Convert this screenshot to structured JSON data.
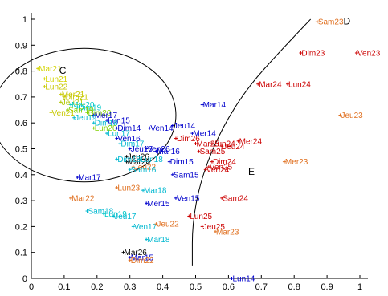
{
  "chart_data": {
    "type": "scatter",
    "xlim": [
      0,
      1
    ],
    "ylim": [
      0,
      1
    ],
    "x_ticks": [
      "0",
      "0.1",
      "0.2",
      "0.3",
      "0.4",
      "0.5",
      "0.6",
      "0.7",
      "0.8",
      "0.9",
      "1"
    ],
    "y_ticks": [
      "0",
      "0.1",
      "0.2",
      "0.3",
      "0.4",
      "0.5",
      "0.6",
      "0.7",
      "0.8",
      "0.9",
      "1"
    ],
    "grid": false,
    "regions": [
      {
        "label": "C",
        "x": 0.085,
        "y": 0.79
      },
      {
        "label": "D",
        "x": 0.95,
        "y": 0.98
      },
      {
        "label": "E",
        "x": 0.66,
        "y": 0.4
      }
    ],
    "points": [
      {
        "label": "Mar21",
        "x": 0.02,
        "y": 0.81,
        "color": "#d4d400"
      },
      {
        "label": "Lun21",
        "x": 0.04,
        "y": 0.77,
        "color": "#d4d400"
      },
      {
        "label": "Lun22",
        "x": 0.04,
        "y": 0.74,
        "color": "#c8c800"
      },
      {
        "label": "Mer21",
        "x": 0.09,
        "y": 0.71,
        "color": "#c8c800"
      },
      {
        "label": "Dim21",
        "x": 0.1,
        "y": 0.7,
        "color": "#c8c800"
      },
      {
        "label": "Jeu21",
        "x": 0.09,
        "y": 0.68,
        "color": "#b0c800"
      },
      {
        "label": "Mar20",
        "x": 0.12,
        "y": 0.67,
        "color": "#00c8c8"
      },
      {
        "label": "Dim19",
        "x": 0.14,
        "y": 0.66,
        "color": "#00c8c8"
      },
      {
        "label": "Sam19",
        "x": 0.11,
        "y": 0.65,
        "color": "#80d000"
      },
      {
        "label": "Ven21",
        "x": 0.06,
        "y": 0.64,
        "color": "#c8c800"
      },
      {
        "label": "Dim20",
        "x": 0.17,
        "y": 0.64,
        "color": "#80d000"
      },
      {
        "label": "Mer17",
        "x": 0.19,
        "y": 0.63,
        "color": "#0000cc"
      },
      {
        "label": "Jeu19",
        "x": 0.13,
        "y": 0.62,
        "color": "#00b8d0"
      },
      {
        "label": "Lun15",
        "x": 0.23,
        "y": 0.61,
        "color": "#0000cc"
      },
      {
        "label": "Dim18",
        "x": 0.19,
        "y": 0.6,
        "color": "#00b8d0"
      },
      {
        "label": "Lun20",
        "x": 0.19,
        "y": 0.58,
        "color": "#80d000"
      },
      {
        "label": "Dim14",
        "x": 0.26,
        "y": 0.58,
        "color": "#0000cc"
      },
      {
        "label": "Ven14",
        "x": 0.36,
        "y": 0.58,
        "color": "#0000cc"
      },
      {
        "label": "Lun17",
        "x": 0.23,
        "y": 0.56,
        "color": "#00b8d0"
      },
      {
        "label": "Ven16",
        "x": 0.26,
        "y": 0.54,
        "color": "#0000cc"
      },
      {
        "label": "Dim17",
        "x": 0.27,
        "y": 0.52,
        "color": "#00b8d0"
      },
      {
        "label": "Jeu14",
        "x": 0.43,
        "y": 0.59,
        "color": "#0000cc"
      },
      {
        "label": "Mar14",
        "x": 0.52,
        "y": 0.67,
        "color": "#0000cc"
      },
      {
        "label": "Mer14",
        "x": 0.49,
        "y": 0.56,
        "color": "#0000cc"
      },
      {
        "label": "Dim26",
        "x": 0.44,
        "y": 0.54,
        "color": "#cc0000"
      },
      {
        "label": "Mar25",
        "x": 0.5,
        "y": 0.52,
        "color": "#cc0000"
      },
      {
        "label": "Lun24",
        "x": 0.55,
        "y": 0.52,
        "color": "#cc0000"
      },
      {
        "label": "Mer24",
        "x": 0.63,
        "y": 0.53,
        "color": "#cc0000"
      },
      {
        "label": "Jeu24",
        "x": 0.58,
        "y": 0.51,
        "color": "#cc0000"
      },
      {
        "label": "Sam25",
        "x": 0.51,
        "y": 0.49,
        "color": "#cc0000"
      },
      {
        "label": "Dim24",
        "x": 0.55,
        "y": 0.45,
        "color": "#cc0000"
      },
      {
        "label": "Ven25",
        "x": 0.54,
        "y": 0.43,
        "color": "#cc0000"
      },
      {
        "label": "Ven24",
        "x": 0.53,
        "y": 0.42,
        "color": "#cc0000"
      },
      {
        "label": "Mer23",
        "x": 0.77,
        "y": 0.45,
        "color": "#e07020"
      },
      {
        "label": "Jeu16",
        "x": 0.3,
        "y": 0.5,
        "color": "#0000cc"
      },
      {
        "label": "Ven26",
        "x": 0.35,
        "y": 0.5,
        "color": "#0000cc"
      },
      {
        "label": "Mar16",
        "x": 0.38,
        "y": 0.49,
        "color": "#0000cc"
      },
      {
        "label": "Jeu26",
        "x": 0.29,
        "y": 0.47,
        "color": "#000000"
      },
      {
        "label": "Mar26",
        "x": 0.29,
        "y": 0.45,
        "color": "#000000"
      },
      {
        "label": "Dim18b",
        "display": "Dim18",
        "x": 0.26,
        "y": 0.46,
        "color": "#00b8d0"
      },
      {
        "label": "Lun18",
        "x": 0.33,
        "y": 0.46,
        "color": "#00b8d0"
      },
      {
        "label": "Jeu22",
        "x": 0.31,
        "y": 0.43,
        "color": "#e07020"
      },
      {
        "label": "Sam16",
        "x": 0.3,
        "y": 0.42,
        "color": "#00b8d0"
      },
      {
        "label": "Dim15",
        "x": 0.42,
        "y": 0.45,
        "color": "#0000cc"
      },
      {
        "label": "Sam15",
        "x": 0.43,
        "y": 0.4,
        "color": "#0000cc"
      },
      {
        "label": "Mar17",
        "x": 0.14,
        "y": 0.39,
        "color": "#0000cc"
      },
      {
        "label": "Lun23",
        "x": 0.26,
        "y": 0.35,
        "color": "#e07020"
      },
      {
        "label": "Mar18",
        "x": 0.34,
        "y": 0.34,
        "color": "#00b8d0"
      },
      {
        "label": "Mar22",
        "x": 0.12,
        "y": 0.31,
        "color": "#e07020"
      },
      {
        "label": "Mer15",
        "x": 0.35,
        "y": 0.29,
        "color": "#0000cc"
      },
      {
        "label": "Ven15",
        "x": 0.44,
        "y": 0.31,
        "color": "#0000cc"
      },
      {
        "label": "Sam24",
        "x": 0.58,
        "y": 0.31,
        "color": "#cc0000"
      },
      {
        "label": "Sam18",
        "x": 0.17,
        "y": 0.26,
        "color": "#00b8d0"
      },
      {
        "label": "Lun19",
        "x": 0.22,
        "y": 0.25,
        "color": "#00c8c8"
      },
      {
        "label": "Jeu17",
        "x": 0.25,
        "y": 0.24,
        "color": "#00b8d0"
      },
      {
        "label": "Ven17",
        "x": 0.31,
        "y": 0.2,
        "color": "#00b8d0"
      },
      {
        "label": "Jeu22b",
        "display": "Jeu22",
        "x": 0.38,
        "y": 0.21,
        "color": "#e07020"
      },
      {
        "label": "Lun25",
        "x": 0.48,
        "y": 0.24,
        "color": "#cc0000"
      },
      {
        "label": "Jeu25",
        "x": 0.52,
        "y": 0.2,
        "color": "#cc0000"
      },
      {
        "label": "Mar23",
        "x": 0.56,
        "y": 0.18,
        "color": "#e07020"
      },
      {
        "label": "Mar18b",
        "display": "Mar18",
        "x": 0.35,
        "y": 0.15,
        "color": "#00b8d0"
      },
      {
        "label": "Mar26b",
        "display": "Mar26",
        "x": 0.28,
        "y": 0.1,
        "color": "#000000"
      },
      {
        "label": "Mar15",
        "x": 0.3,
        "y": 0.08,
        "color": "#0000cc"
      },
      {
        "label": "Dim22",
        "x": 0.3,
        "y": 0.07,
        "color": "#e07020"
      },
      {
        "label": "Lun14",
        "x": 0.61,
        "y": 0.0,
        "color": "#0000cc"
      },
      {
        "label": "Sam23",
        "x": 0.87,
        "y": 0.99,
        "color": "#e07020"
      },
      {
        "label": "Dim23",
        "x": 0.82,
        "y": 0.87,
        "color": "#cc0000"
      },
      {
        "label": "Ven23",
        "x": 0.99,
        "y": 0.87,
        "color": "#cc0000"
      },
      {
        "label": "Mar24",
        "x": 0.69,
        "y": 0.75,
        "color": "#cc0000"
      },
      {
        "label": "Lun24b",
        "display": "Lun24",
        "x": 0.78,
        "y": 0.75,
        "color": "#cc0000"
      },
      {
        "label": "Jeu23",
        "x": 0.94,
        "y": 0.63,
        "color": "#e07020"
      }
    ],
    "circle": {
      "cx": 0.16,
      "cy": 0.63,
      "r": 0.28
    },
    "curve": [
      [
        0.49,
        0.05
      ],
      [
        0.49,
        0.22
      ],
      [
        0.52,
        0.4
      ],
      [
        0.58,
        0.58
      ],
      [
        0.66,
        0.74
      ],
      [
        0.76,
        0.88
      ],
      [
        0.85,
        1.0
      ]
    ]
  }
}
